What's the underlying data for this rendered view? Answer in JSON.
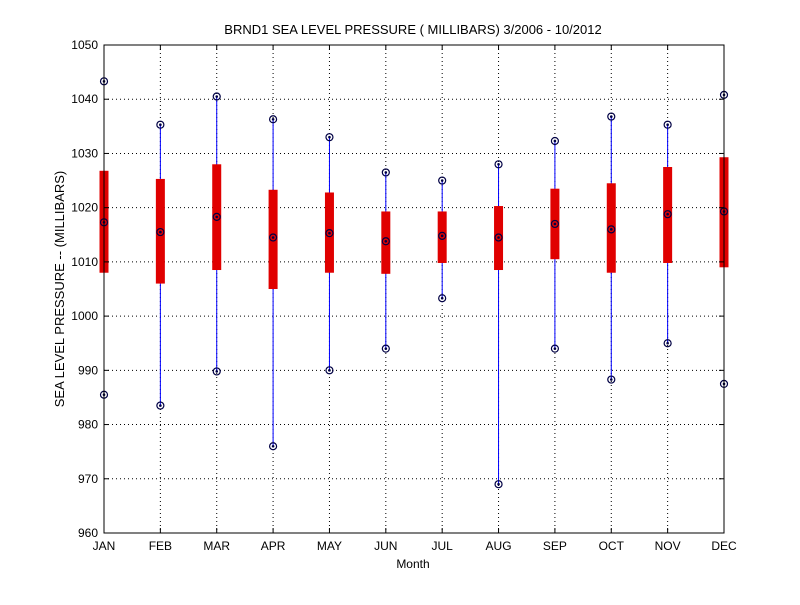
{
  "chart_data": {
    "type": "boxplot",
    "title": "BRND1  SEA LEVEL PRESSURE ( MILLIBARS) 3/2006 - 10/2012",
    "xlabel": "Month",
    "ylabel": "SEA LEVEL PRESSURE -- (MILLIBARS)",
    "ylim": [
      960,
      1050
    ],
    "yticks": [
      960,
      970,
      980,
      990,
      1000,
      1010,
      1020,
      1030,
      1040,
      1050
    ],
    "grid": true,
    "categories": [
      "JAN",
      "FEB",
      "MAR",
      "APR",
      "MAY",
      "JUN",
      "JUL",
      "AUG",
      "SEP",
      "OCT",
      "NOV",
      "DEC"
    ],
    "series": [
      {
        "min": [
          985.5,
          983.5,
          989.8,
          976.0,
          990.0,
          994.0,
          1003.3,
          969.0,
          994.0,
          988.3,
          995.0,
          987.5
        ],
        "q1": [
          1008.0,
          1006.0,
          1008.5,
          1005.0,
          1008.0,
          1007.8,
          1009.8,
          1008.5,
          1010.5,
          1008.0,
          1009.8,
          1009.0
        ],
        "median": [
          1017.3,
          1015.5,
          1018.3,
          1014.5,
          1015.3,
          1013.8,
          1014.8,
          1014.5,
          1017.0,
          1016.0,
          1018.8,
          1019.3
        ],
        "q3": [
          1026.8,
          1025.3,
          1028.0,
          1023.3,
          1022.8,
          1019.3,
          1019.3,
          1020.3,
          1023.5,
          1024.5,
          1027.5,
          1029.3
        ],
        "max": [
          1043.3,
          1035.3,
          1040.5,
          1036.3,
          1033.0,
          1026.5,
          1025.0,
          1028.0,
          1032.3,
          1036.8,
          1035.3,
          1040.8
        ]
      }
    ],
    "colors": {
      "whisker": "#0000ff",
      "box": "#e00000",
      "marker": "#000044",
      "grid": "#000000",
      "axis": "#000000"
    }
  }
}
